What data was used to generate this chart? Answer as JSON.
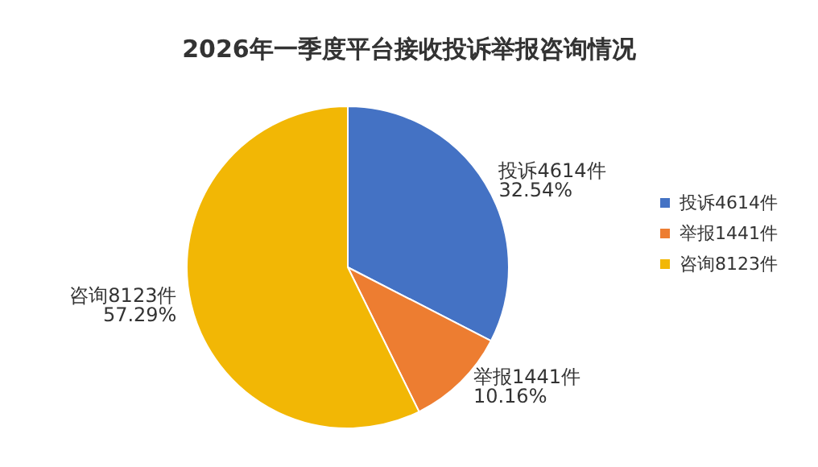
{
  "chart_data": {
    "type": "pie",
    "title": "2026年一季度平台接收投诉举报咨询情况",
    "categories": [
      "投诉4614件",
      "举报1441件",
      "咨询8123件"
    ],
    "values": [
      32.54,
      10.16,
      57.29
    ],
    "colors": [
      "#4472c4",
      "#ed7d31",
      "#f2b705"
    ],
    "value_labels": [
      "32.54%",
      "10.16%",
      "57.29%"
    ],
    "legend": "right"
  }
}
